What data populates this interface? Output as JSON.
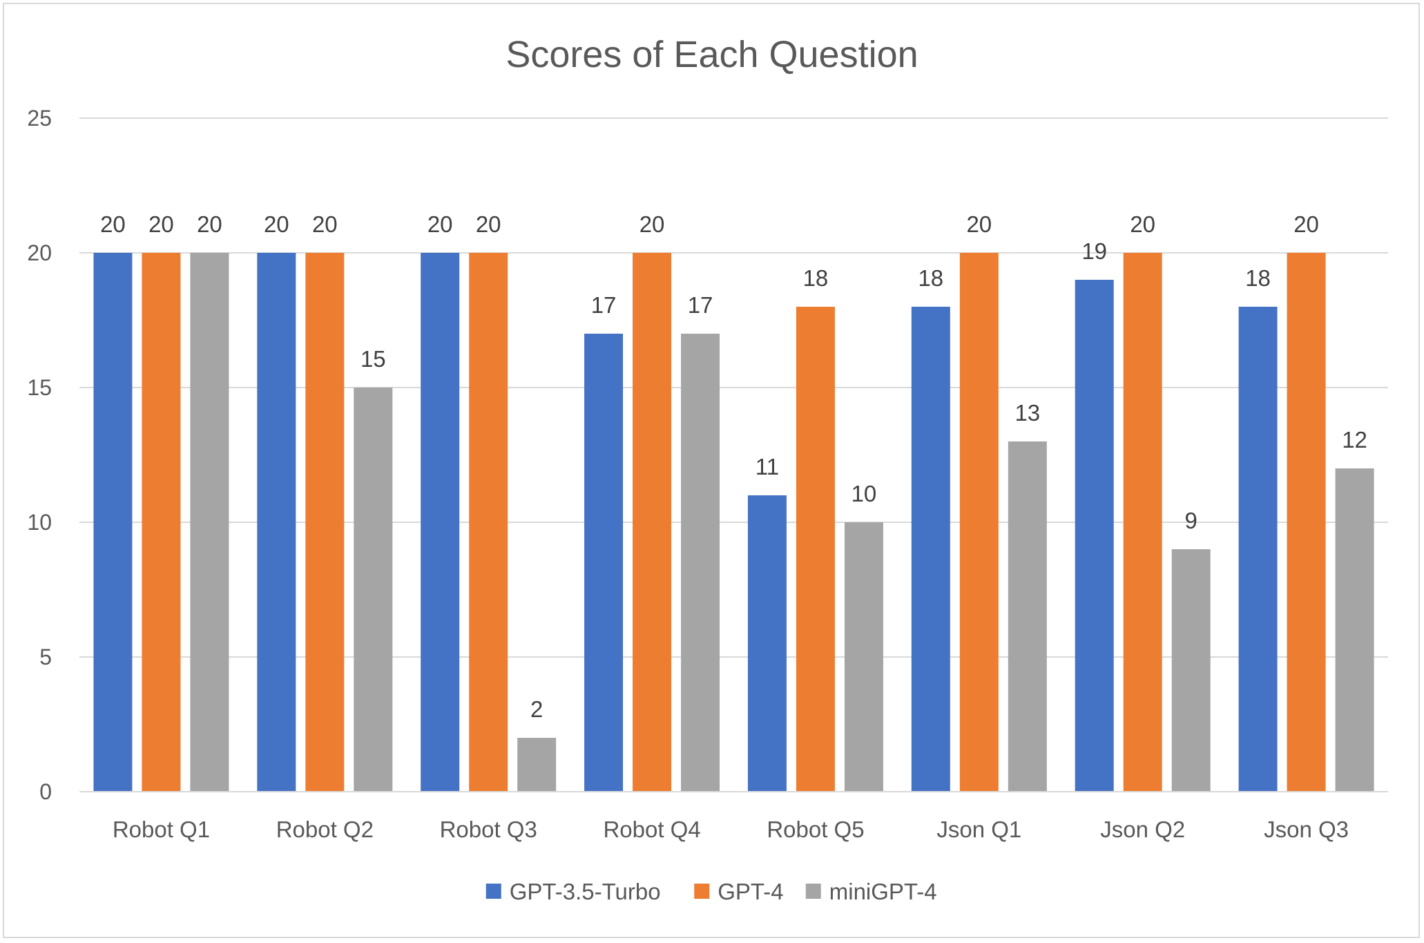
{
  "chart_data": {
    "type": "bar",
    "title": "Scores of Each Question",
    "xlabel": "",
    "ylabel": "",
    "ylim": [
      0,
      25
    ],
    "yticks": [
      0,
      5,
      10,
      15,
      20,
      25
    ],
    "grid": true,
    "legend_position": "bottom",
    "categories": [
      "Robot Q1",
      "Robot Q2",
      "Robot Q3",
      "Robot Q4",
      "Robot Q5",
      "Json Q1",
      "Json Q2",
      "Json Q3"
    ],
    "series": [
      {
        "name": "GPT-3.5-Turbo",
        "color": "#4472c4",
        "values": [
          20,
          20,
          20,
          17,
          11,
          18,
          19,
          18
        ]
      },
      {
        "name": "GPT-4",
        "color": "#ed7d31",
        "values": [
          20,
          20,
          20,
          20,
          18,
          20,
          20,
          20
        ]
      },
      {
        "name": "miniGPT-4",
        "color": "#a5a5a5",
        "values": [
          20,
          15,
          2,
          17,
          10,
          13,
          9,
          12
        ]
      }
    ]
  }
}
